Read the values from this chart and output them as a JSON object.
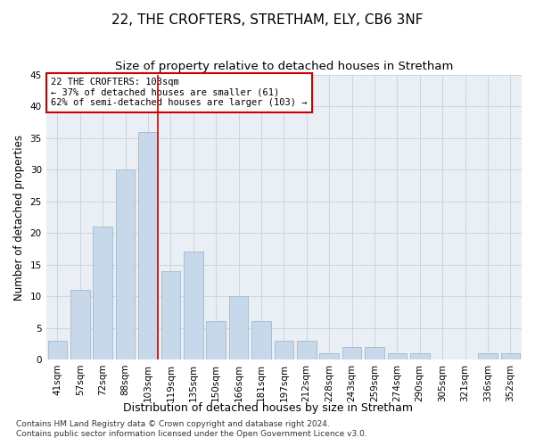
{
  "title1": "22, THE CROFTERS, STRETHAM, ELY, CB6 3NF",
  "title2": "Size of property relative to detached houses in Stretham",
  "xlabel": "Distribution of detached houses by size in Stretham",
  "ylabel": "Number of detached properties",
  "categories": [
    "41sqm",
    "57sqm",
    "72sqm",
    "88sqm",
    "103sqm",
    "119sqm",
    "135sqm",
    "150sqm",
    "166sqm",
    "181sqm",
    "197sqm",
    "212sqm",
    "228sqm",
    "243sqm",
    "259sqm",
    "274sqm",
    "290sqm",
    "305sqm",
    "321sqm",
    "336sqm",
    "352sqm"
  ],
  "values": [
    3,
    11,
    21,
    30,
    36,
    14,
    17,
    6,
    10,
    6,
    3,
    3,
    1,
    2,
    2,
    1,
    1,
    0,
    0,
    1,
    1
  ],
  "bar_color": "#c8d8eb",
  "bar_edge_color": "#a8bfd0",
  "highlight_index": 4,
  "highlight_line_color": "#cc0000",
  "annotation_text": "22 THE CROFTERS: 103sqm\n← 37% of detached houses are smaller (61)\n62% of semi-detached houses are larger (103) →",
  "annotation_box_color": "#cc0000",
  "ylim": [
    0,
    45
  ],
  "yticks": [
    0,
    5,
    10,
    15,
    20,
    25,
    30,
    35,
    40,
    45
  ],
  "grid_color": "#ccd4e0",
  "bg_color": "#eaeff6",
  "footer1": "Contains HM Land Registry data © Crown copyright and database right 2024.",
  "footer2": "Contains public sector information licensed under the Open Government Licence v3.0.",
  "title1_fontsize": 11,
  "title2_fontsize": 9.5,
  "xlabel_fontsize": 9,
  "ylabel_fontsize": 8.5,
  "tick_fontsize": 7.5,
  "ann_fontsize": 7.5,
  "footer_fontsize": 6.5
}
